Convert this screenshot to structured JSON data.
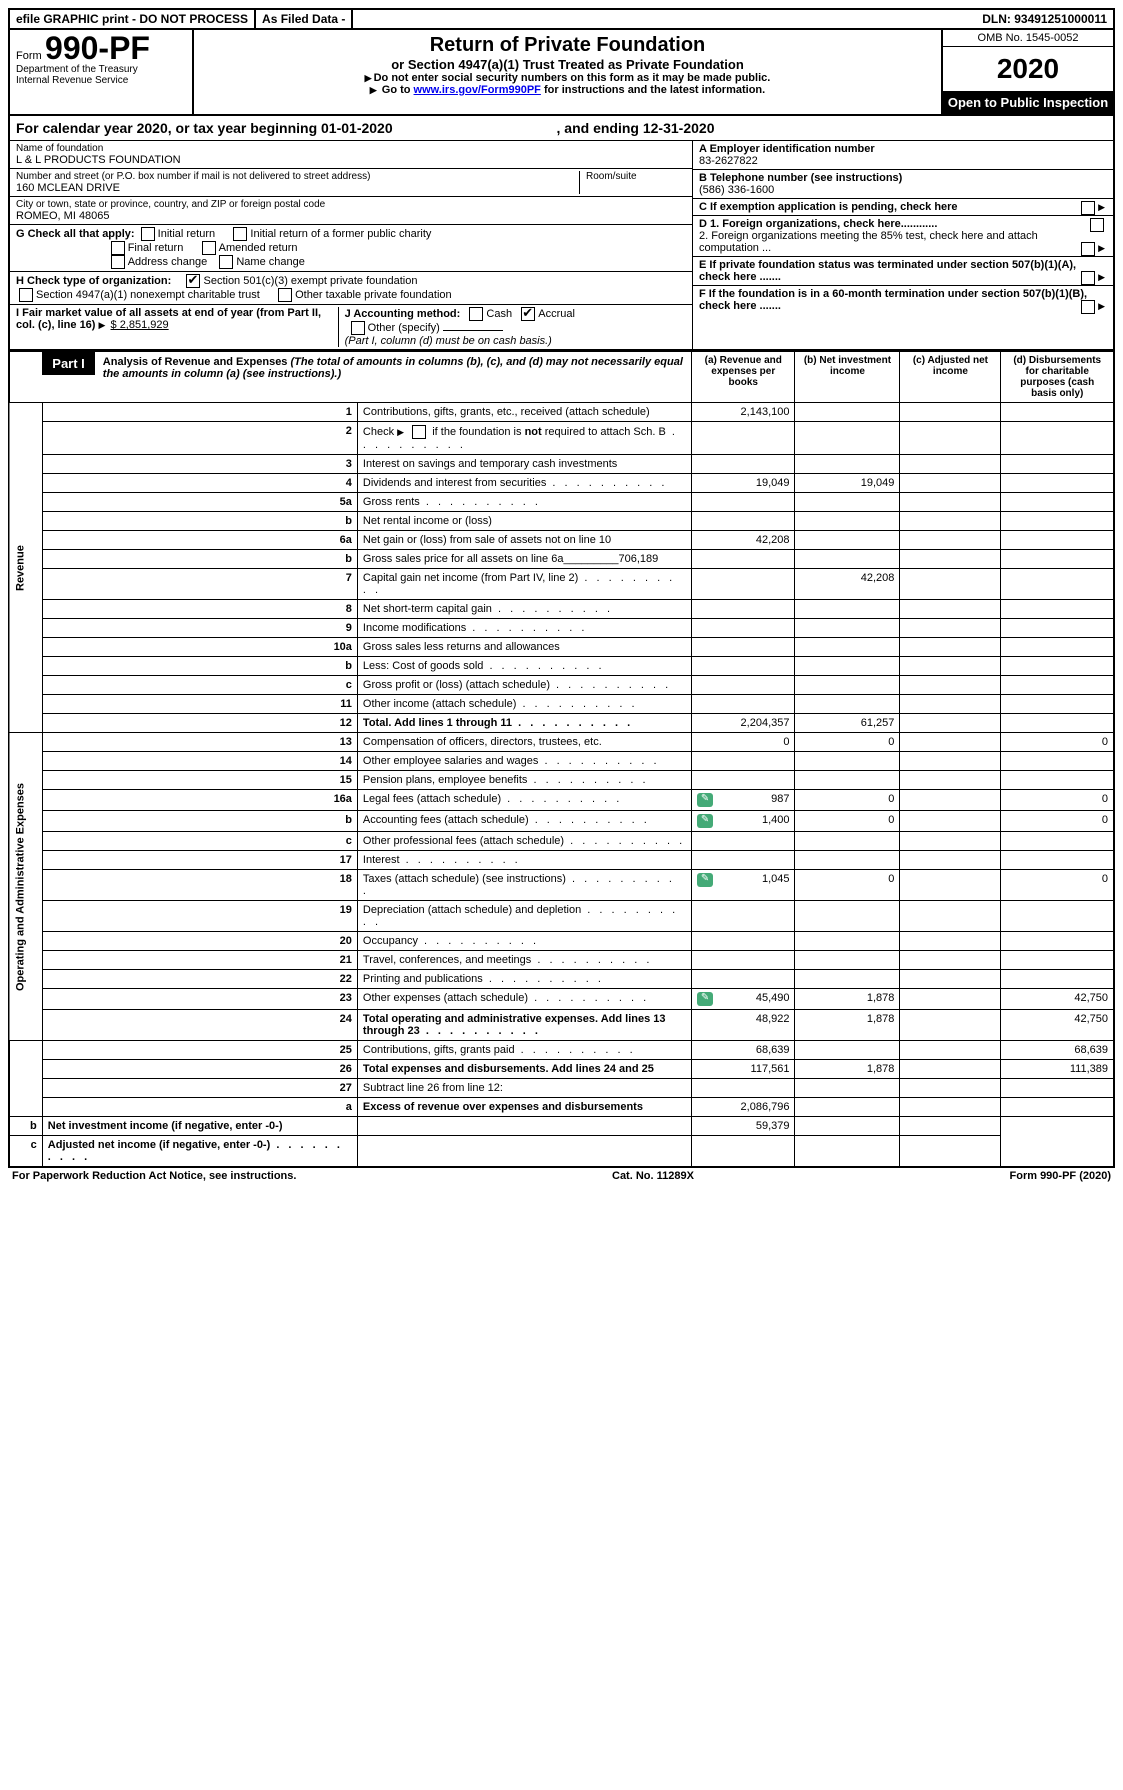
{
  "top": {
    "efile": "efile GRAPHIC print - DO NOT PROCESS",
    "asfiled": "As Filed Data -",
    "dln": "DLN: 93491251000011"
  },
  "header": {
    "form_prefix": "Form",
    "form_no": "990-PF",
    "dept": "Department of the Treasury",
    "irs": "Internal Revenue Service",
    "title": "Return of Private Foundation",
    "subtitle": "or Section 4947(a)(1) Trust Treated as Private Foundation",
    "instr1": "Do not enter social security numbers on this form as it may be made public.",
    "instr2_pre": "Go to ",
    "instr2_link": "www.irs.gov/Form990PF",
    "instr2_post": " for instructions and the latest information.",
    "omb": "OMB No. 1545-0052",
    "year": "2020",
    "open": "Open to Public Inspection"
  },
  "calyear": {
    "text": "For calendar year 2020, or tax year beginning 01-01-2020",
    "ending": ", and ending 12-31-2020"
  },
  "entity": {
    "name_label": "Name of foundation",
    "name": "L & L PRODUCTS FOUNDATION",
    "street_label": "Number and street (or P.O. box number if mail is not delivered to street address)",
    "room_label": "Room/suite",
    "street": "160 MCLEAN DRIVE",
    "city_label": "City or town, state or province, country, and ZIP or foreign postal code",
    "city": "ROMEO, MI  48065",
    "ein_label": "A Employer identification number",
    "ein": "83-2627822",
    "phone_label": "B Telephone number (see instructions)",
    "phone": "(586) 336-1600",
    "c_label": "C If exemption application is pending, check here",
    "g_label": "G Check all that apply:",
    "g1": "Initial return",
    "g2": "Initial return of a former public charity",
    "g3": "Final return",
    "g4": "Amended return",
    "g5": "Address change",
    "g6": "Name change",
    "h_label": "H Check type of organization:",
    "h1": "Section 501(c)(3) exempt private foundation",
    "h2": "Section 4947(a)(1) nonexempt charitable trust",
    "h3": "Other taxable private foundation",
    "d1": "D 1. Foreign organizations, check here............",
    "d2": "2. Foreign organizations meeting the 85% test, check here and attach computation ...",
    "e": "E  If private foundation status was terminated under section 507(b)(1)(A), check here .......",
    "f": "F  If the foundation is in a 60-month termination under section 507(b)(1)(B), check here .......",
    "i_label": "I Fair market value of all assets at end of year (from Part II, col. (c), line 16)",
    "i_val": "$  2,851,929",
    "j_label": "J Accounting method:",
    "j_cash": "Cash",
    "j_accrual": "Accrual",
    "j_other": "Other (specify)",
    "j_note": "(Part I, column (d) must be on cash basis.)"
  },
  "part1": {
    "label": "Part I",
    "title": "Analysis of Revenue and Expenses",
    "note": "(The total of amounts in columns (b), (c), and (d) may not necessarily equal the amounts in column (a) (see instructions).)",
    "col_a": "(a)   Revenue and expenses per books",
    "col_b": "(b)   Net investment income",
    "col_c": "(c)  Adjusted net income",
    "col_d": "(d)  Disbursements for charitable purposes (cash basis only)"
  },
  "sides": {
    "revenue": "Revenue",
    "expenses": "Operating and Administrative Expenses"
  },
  "rows": [
    {
      "n": "1",
      "d": "Contributions, gifts, grants, etc., received (attach schedule)",
      "a": "2,143,100"
    },
    {
      "n": "2",
      "d": "Check ▶ ☐ if the foundation is not required to attach Sch. B",
      "dots": true
    },
    {
      "n": "3",
      "d": "Interest on savings and temporary cash investments"
    },
    {
      "n": "4",
      "d": "Dividends and interest from securities",
      "a": "19,049",
      "b": "19,049",
      "dots": true
    },
    {
      "n": "5a",
      "d": "Gross rents",
      "dots": true
    },
    {
      "n": "b",
      "d": "Net rental income or (loss)"
    },
    {
      "n": "6a",
      "d": "Net gain or (loss) from sale of assets not on line 10",
      "a": "42,208"
    },
    {
      "n": "b",
      "d": "Gross sales price for all assets on line 6a_________706,189"
    },
    {
      "n": "7",
      "d": "Capital gain net income (from Part IV, line 2)",
      "b": "42,208",
      "dots": true
    },
    {
      "n": "8",
      "d": "Net short-term capital gain",
      "dots": true
    },
    {
      "n": "9",
      "d": "Income modifications",
      "dots": true
    },
    {
      "n": "10a",
      "d": "Gross sales less returns and allowances"
    },
    {
      "n": "b",
      "d": "Less: Cost of goods sold",
      "dots": true
    },
    {
      "n": "c",
      "d": "Gross profit or (loss) (attach schedule)",
      "dots": true
    },
    {
      "n": "11",
      "d": "Other income (attach schedule)",
      "dots": true
    },
    {
      "n": "12",
      "d": "Total. Add lines 1 through 11",
      "a": "2,204,357",
      "b": "61,257",
      "bold": true,
      "dots": true
    },
    {
      "n": "13",
      "d": "Compensation of officers, directors, trustees, etc.",
      "a": "0",
      "b": "0",
      "dd": "0"
    },
    {
      "n": "14",
      "d": "Other employee salaries and wages",
      "dots": true
    },
    {
      "n": "15",
      "d": "Pension plans, employee benefits",
      "dots": true
    },
    {
      "n": "16a",
      "d": "Legal fees (attach schedule)",
      "a": "987",
      "b": "0",
      "dd": "0",
      "icon": true,
      "dots": true
    },
    {
      "n": "b",
      "d": "Accounting fees (attach schedule)",
      "a": "1,400",
      "b": "0",
      "dd": "0",
      "icon": true,
      "dots": true
    },
    {
      "n": "c",
      "d": "Other professional fees (attach schedule)",
      "dots": true
    },
    {
      "n": "17",
      "d": "Interest",
      "dots": true
    },
    {
      "n": "18",
      "d": "Taxes (attach schedule) (see instructions)",
      "a": "1,045",
      "b": "0",
      "dd": "0",
      "icon": true,
      "dots": true
    },
    {
      "n": "19",
      "d": "Depreciation (attach schedule) and depletion",
      "dots": true
    },
    {
      "n": "20",
      "d": "Occupancy",
      "dots": true
    },
    {
      "n": "21",
      "d": "Travel, conferences, and meetings",
      "dots": true
    },
    {
      "n": "22",
      "d": "Printing and publications",
      "dots": true
    },
    {
      "n": "23",
      "d": "Other expenses (attach schedule)",
      "a": "45,490",
      "b": "1,878",
      "dd": "42,750",
      "icon": true,
      "dots": true
    },
    {
      "n": "24",
      "d": "Total operating and administrative expenses. Add lines 13 through 23",
      "a": "48,922",
      "b": "1,878",
      "dd": "42,750",
      "bold": true,
      "dots": true
    },
    {
      "n": "25",
      "d": "Contributions, gifts, grants paid",
      "a": "68,639",
      "dd": "68,639",
      "dots": true
    },
    {
      "n": "26",
      "d": "Total expenses and disbursements. Add lines 24 and 25",
      "a": "117,561",
      "b": "1,878",
      "dd": "111,389",
      "bold": true
    },
    {
      "n": "27",
      "d": "Subtract line 26 from line 12:"
    },
    {
      "n": "a",
      "d": "Excess of revenue over expenses and disbursements",
      "a": "2,086,796",
      "bold": true
    },
    {
      "n": "b",
      "d": "Net investment income (if negative, enter -0-)",
      "b": "59,379",
      "bold": true
    },
    {
      "n": "c",
      "d": "Adjusted net income (if negative, enter -0-)",
      "bold": true,
      "dots": true
    }
  ],
  "footer": {
    "left": "For Paperwork Reduction Act Notice, see instructions.",
    "mid": "Cat. No. 11289X",
    "right": "Form 990-PF (2020)"
  }
}
